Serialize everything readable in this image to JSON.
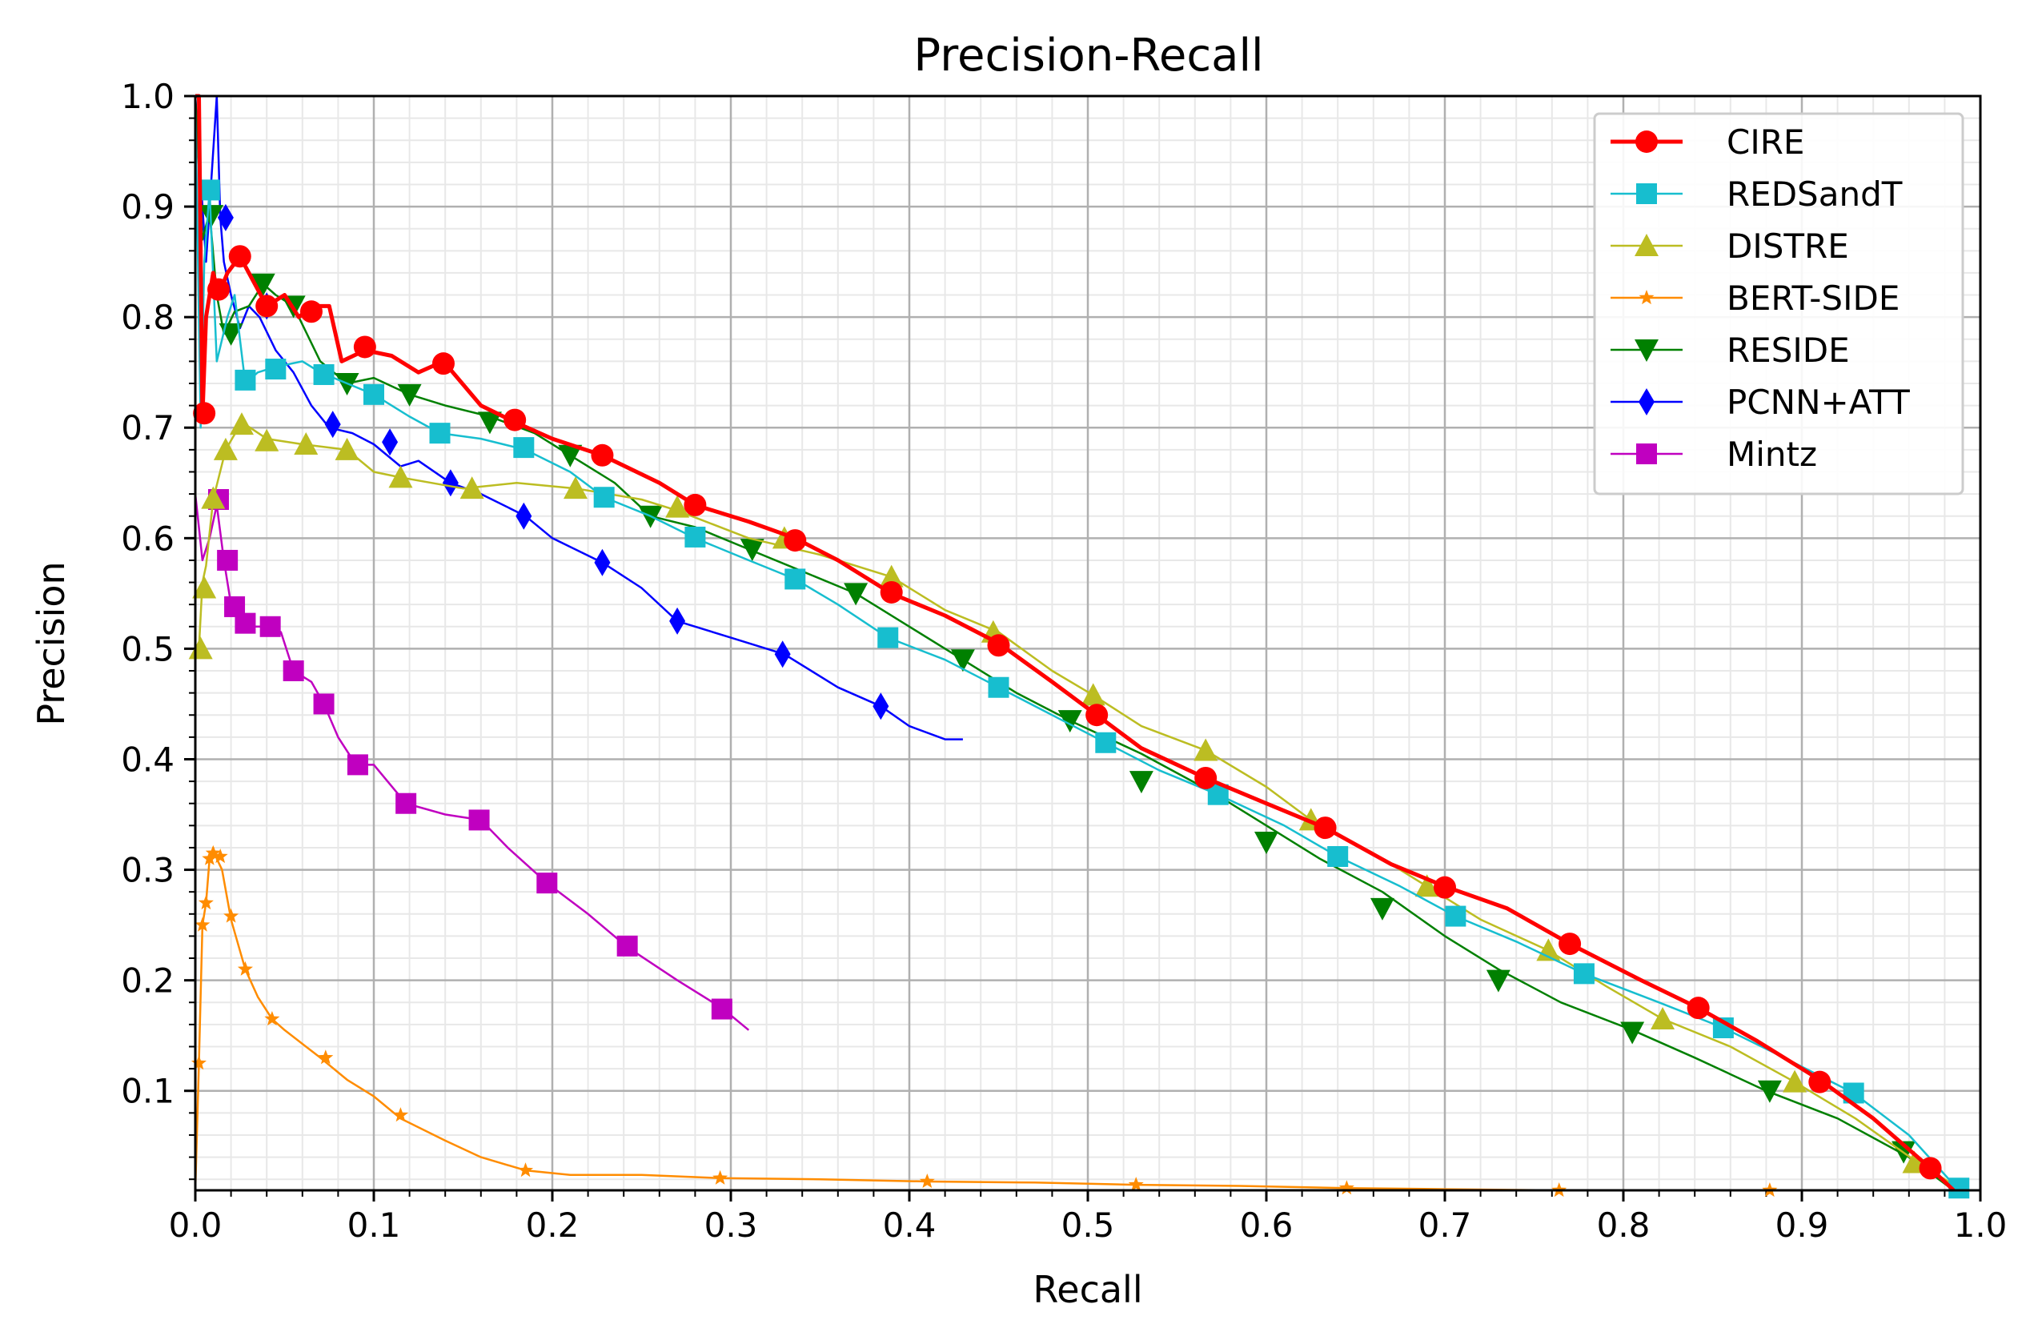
{
  "chart_data": {
    "type": "line",
    "title": "Precision-Recall",
    "xlabel": "Recall",
    "ylabel": "Precision",
    "xlim": [
      0.0,
      1.0
    ],
    "ylim": [
      0.01,
      1.0
    ],
    "grid": true,
    "legend_position": "top-right",
    "xticks": [
      "0.0",
      "0.1",
      "0.2",
      "0.3",
      "0.4",
      "0.5",
      "0.6",
      "0.7",
      "0.8",
      "0.9",
      "1.0"
    ],
    "yticks": [
      "0.1",
      "0.2",
      "0.3",
      "0.4",
      "0.5",
      "0.6",
      "0.7",
      "0.8",
      "0.9",
      "1.0"
    ],
    "series": [
      {
        "name": "CIRE",
        "color": "#ff0000",
        "marker": "circle",
        "lw": 5,
        "x": [
          0.0,
          0.002,
          0.004,
          0.006,
          0.01,
          0.013,
          0.018,
          0.025,
          0.03,
          0.04,
          0.05,
          0.058,
          0.065,
          0.075,
          0.082,
          0.095,
          0.11,
          0.125,
          0.139,
          0.16,
          0.179,
          0.2,
          0.228,
          0.26,
          0.28,
          0.31,
          0.336,
          0.36,
          0.39,
          0.42,
          0.45,
          0.48,
          0.505,
          0.53,
          0.566,
          0.6,
          0.633,
          0.67,
          0.7,
          0.735,
          0.77,
          0.81,
          0.842,
          0.875,
          0.91,
          0.94,
          0.972,
          0.985
        ],
        "y": [
          1.0,
          1.0,
          0.71,
          0.8,
          0.84,
          0.82,
          0.84,
          0.855,
          0.84,
          0.81,
          0.82,
          0.8,
          0.81,
          0.81,
          0.76,
          0.77,
          0.765,
          0.75,
          0.76,
          0.72,
          0.705,
          0.69,
          0.675,
          0.65,
          0.63,
          0.615,
          0.6,
          0.58,
          0.55,
          0.53,
          0.505,
          0.47,
          0.44,
          0.41,
          0.383,
          0.36,
          0.338,
          0.305,
          0.285,
          0.265,
          0.233,
          0.2,
          0.175,
          0.145,
          0.11,
          0.075,
          0.03,
          0.01
        ],
        "markers_x": [
          0.005,
          0.013,
          0.025,
          0.04,
          0.065,
          0.095,
          0.139,
          0.179,
          0.228,
          0.28,
          0.336,
          0.39,
          0.45,
          0.505,
          0.566,
          0.633,
          0.7,
          0.77,
          0.842,
          0.91,
          0.972
        ],
        "markers_y": [
          0.713,
          0.825,
          0.855,
          0.81,
          0.805,
          0.773,
          0.758,
          0.707,
          0.675,
          0.63,
          0.598,
          0.551,
          0.503,
          0.44,
          0.383,
          0.338,
          0.284,
          0.233,
          0.175,
          0.108,
          0.03
        ]
      },
      {
        "name": "REDSandT",
        "color": "#17becf",
        "marker": "square",
        "lw": 2.5,
        "x": [
          0.0,
          0.003,
          0.005,
          0.008,
          0.012,
          0.018,
          0.022,
          0.028,
          0.035,
          0.045,
          0.06,
          0.07,
          0.085,
          0.1,
          0.12,
          0.137,
          0.16,
          0.185,
          0.21,
          0.229,
          0.255,
          0.28,
          0.31,
          0.336,
          0.36,
          0.388,
          0.42,
          0.45,
          0.48,
          0.51,
          0.54,
          0.573,
          0.61,
          0.64,
          0.675,
          0.706,
          0.74,
          0.778,
          0.82,
          0.856,
          0.89,
          0.929,
          0.96,
          0.988
        ],
        "y": [
          1.0,
          0.7,
          0.85,
          0.915,
          0.76,
          0.8,
          0.82,
          0.74,
          0.75,
          0.755,
          0.76,
          0.75,
          0.74,
          0.73,
          0.71,
          0.695,
          0.69,
          0.68,
          0.66,
          0.637,
          0.62,
          0.6,
          0.58,
          0.563,
          0.54,
          0.51,
          0.49,
          0.465,
          0.44,
          0.415,
          0.39,
          0.368,
          0.34,
          0.312,
          0.285,
          0.258,
          0.235,
          0.206,
          0.18,
          0.157,
          0.13,
          0.098,
          0.06,
          0.01
        ],
        "markers_x": [
          0.008,
          0.028,
          0.045,
          0.072,
          0.1,
          0.137,
          0.184,
          0.229,
          0.28,
          0.336,
          0.388,
          0.45,
          0.51,
          0.573,
          0.64,
          0.706,
          0.778,
          0.856,
          0.929,
          0.988
        ],
        "markers_y": [
          0.915,
          0.743,
          0.753,
          0.748,
          0.73,
          0.695,
          0.682,
          0.637,
          0.601,
          0.563,
          0.51,
          0.465,
          0.415,
          0.368,
          0.312,
          0.258,
          0.206,
          0.157,
          0.098,
          0.012
        ]
      },
      {
        "name": "DISTRE",
        "color": "#bcbd22",
        "marker": "triangle-up",
        "lw": 2.5,
        "x": [
          0.0,
          0.002,
          0.004,
          0.006,
          0.01,
          0.017,
          0.026,
          0.04,
          0.06,
          0.085,
          0.1,
          0.115,
          0.15,
          0.18,
          0.213,
          0.25,
          0.27,
          0.31,
          0.35,
          0.39,
          0.42,
          0.45,
          0.48,
          0.503,
          0.53,
          0.566,
          0.6,
          0.625,
          0.66,
          0.69,
          0.72,
          0.758,
          0.79,
          0.822,
          0.86,
          0.896,
          0.93,
          0.965,
          0.99
        ],
        "y": [
          0.5,
          0.5,
          0.56,
          0.575,
          0.635,
          0.68,
          0.705,
          0.69,
          0.685,
          0.68,
          0.66,
          0.655,
          0.645,
          0.65,
          0.645,
          0.635,
          0.625,
          0.6,
          0.585,
          0.565,
          0.535,
          0.515,
          0.48,
          0.458,
          0.43,
          0.408,
          0.375,
          0.345,
          0.315,
          0.285,
          0.255,
          0.227,
          0.195,
          0.165,
          0.14,
          0.108,
          0.075,
          0.035,
          0.01
        ],
        "markers_x": [
          0.003,
          0.005,
          0.01,
          0.017,
          0.026,
          0.04,
          0.062,
          0.085,
          0.115,
          0.155,
          0.213,
          0.27,
          0.33,
          0.39,
          0.447,
          0.503,
          0.566,
          0.625,
          0.69,
          0.758,
          0.822,
          0.896,
          0.963
        ],
        "markers_y": [
          0.5,
          0.555,
          0.636,
          0.68,
          0.703,
          0.688,
          0.685,
          0.68,
          0.655,
          0.645,
          0.645,
          0.628,
          0.6,
          0.565,
          0.515,
          0.458,
          0.408,
          0.345,
          0.285,
          0.227,
          0.165,
          0.108,
          0.035
        ]
      },
      {
        "name": "BERT-SIDE",
        "color": "#ff8c00",
        "marker": "star",
        "lw": 2.5,
        "x": [
          0.0,
          0.002,
          0.004,
          0.006,
          0.008,
          0.01,
          0.012,
          0.015,
          0.02,
          0.028,
          0.035,
          0.043,
          0.05,
          0.07,
          0.085,
          0.1,
          0.115,
          0.14,
          0.16,
          0.185,
          0.21,
          0.25,
          0.294,
          0.35,
          0.41,
          0.47,
          0.527,
          0.585,
          0.645,
          0.7,
          0.764,
          0.82,
          0.88
        ],
        "y": [
          0.0,
          0.125,
          0.25,
          0.27,
          0.31,
          0.32,
          0.31,
          0.3,
          0.255,
          0.21,
          0.185,
          0.165,
          0.155,
          0.13,
          0.11,
          0.095,
          0.075,
          0.055,
          0.04,
          0.028,
          0.024,
          0.024,
          0.021,
          0.02,
          0.018,
          0.017,
          0.015,
          0.014,
          0.012,
          0.011,
          0.008,
          0.007,
          0.005
        ],
        "markers_x": [
          0.002,
          0.004,
          0.006,
          0.008,
          0.01,
          0.014,
          0.02,
          0.028,
          0.043,
          0.073,
          0.115,
          0.185,
          0.294,
          0.41,
          0.527,
          0.645,
          0.764,
          0.882
        ],
        "markers_y": [
          0.125,
          0.25,
          0.27,
          0.31,
          0.315,
          0.312,
          0.258,
          0.21,
          0.165,
          0.13,
          0.078,
          0.028,
          0.021,
          0.018,
          0.015,
          0.012,
          0.008,
          0.005
        ]
      },
      {
        "name": "RESIDE",
        "color": "#008000",
        "marker": "triangle-down",
        "lw": 2.5,
        "x": [
          0.0,
          0.004,
          0.008,
          0.012,
          0.016,
          0.022,
          0.03,
          0.038,
          0.045,
          0.055,
          0.07,
          0.085,
          0.1,
          0.12,
          0.14,
          0.165,
          0.19,
          0.21,
          0.235,
          0.255,
          0.28,
          0.31,
          0.34,
          0.37,
          0.4,
          0.43,
          0.46,
          0.49,
          0.53,
          0.57,
          0.6,
          0.63,
          0.665,
          0.7,
          0.73,
          0.765,
          0.805,
          0.84,
          0.88,
          0.92,
          0.96,
          0.985
        ],
        "y": [
          1.0,
          0.87,
          0.895,
          0.82,
          0.785,
          0.805,
          0.81,
          0.83,
          0.82,
          0.81,
          0.76,
          0.74,
          0.745,
          0.73,
          0.72,
          0.71,
          0.695,
          0.675,
          0.65,
          0.62,
          0.61,
          0.59,
          0.57,
          0.55,
          0.52,
          0.49,
          0.46,
          0.435,
          0.405,
          0.37,
          0.34,
          0.31,
          0.28,
          0.24,
          0.21,
          0.18,
          0.155,
          0.13,
          0.1,
          0.075,
          0.04,
          0.01
        ],
        "markers_x": [
          0.009,
          0.02,
          0.038,
          0.055,
          0.085,
          0.12,
          0.165,
          0.21,
          0.255,
          0.312,
          0.37,
          0.43,
          0.49,
          0.53,
          0.6,
          0.665,
          0.73,
          0.805,
          0.882,
          0.957
        ],
        "markers_y": [
          0.892,
          0.785,
          0.83,
          0.81,
          0.74,
          0.73,
          0.705,
          0.675,
          0.62,
          0.59,
          0.55,
          0.49,
          0.435,
          0.38,
          0.325,
          0.265,
          0.2,
          0.153,
          0.1,
          0.045
        ]
      },
      {
        "name": "PCNN+ATT",
        "color": "#0000ff",
        "marker": "diamond",
        "lw": 2.5,
        "x": [
          0.0,
          0.006,
          0.012,
          0.014,
          0.016,
          0.02,
          0.025,
          0.03,
          0.036,
          0.045,
          0.055,
          0.065,
          0.075,
          0.088,
          0.1,
          0.115,
          0.125,
          0.143,
          0.16,
          0.185,
          0.2,
          0.228,
          0.25,
          0.27,
          0.3,
          0.33,
          0.36,
          0.384,
          0.4,
          0.42,
          0.43
        ],
        "y": [
          1.0,
          0.85,
          1.0,
          0.89,
          0.85,
          0.82,
          0.79,
          0.81,
          0.8,
          0.77,
          0.75,
          0.72,
          0.7,
          0.695,
          0.685,
          0.665,
          0.67,
          0.65,
          0.64,
          0.62,
          0.6,
          0.578,
          0.555,
          0.525,
          0.51,
          0.495,
          0.465,
          0.448,
          0.43,
          0.418,
          0.418
        ],
        "markers_x": [
          0.017,
          0.04,
          0.077,
          0.109,
          0.143,
          0.184,
          0.228,
          0.27,
          0.329,
          0.384
        ],
        "markers_y": [
          0.89,
          0.81,
          0.703,
          0.687,
          0.65,
          0.62,
          0.578,
          0.525,
          0.495,
          0.448
        ]
      },
      {
        "name": "Mintz",
        "color": "#c000c0",
        "marker": "square",
        "lw": 2.5,
        "x": [
          0.0,
          0.004,
          0.008,
          0.012,
          0.016,
          0.02,
          0.025,
          0.03,
          0.04,
          0.048,
          0.055,
          0.065,
          0.072,
          0.08,
          0.09,
          0.1,
          0.118,
          0.14,
          0.16,
          0.175,
          0.197,
          0.22,
          0.242,
          0.27,
          0.295,
          0.31
        ],
        "y": [
          0.64,
          0.58,
          0.6,
          0.63,
          0.58,
          0.54,
          0.535,
          0.52,
          0.52,
          0.515,
          0.48,
          0.47,
          0.45,
          0.42,
          0.395,
          0.395,
          0.36,
          0.35,
          0.345,
          0.32,
          0.288,
          0.26,
          0.23,
          0.2,
          0.175,
          0.155
        ],
        "markers_x": [
          0.013,
          0.018,
          0.022,
          0.028,
          0.042,
          0.055,
          0.072,
          0.091,
          0.118,
          0.159,
          0.197,
          0.242,
          0.295
        ],
        "markers_y": [
          0.635,
          0.58,
          0.538,
          0.523,
          0.52,
          0.48,
          0.45,
          0.395,
          0.36,
          0.345,
          0.288,
          0.231,
          0.174
        ]
      }
    ]
  }
}
